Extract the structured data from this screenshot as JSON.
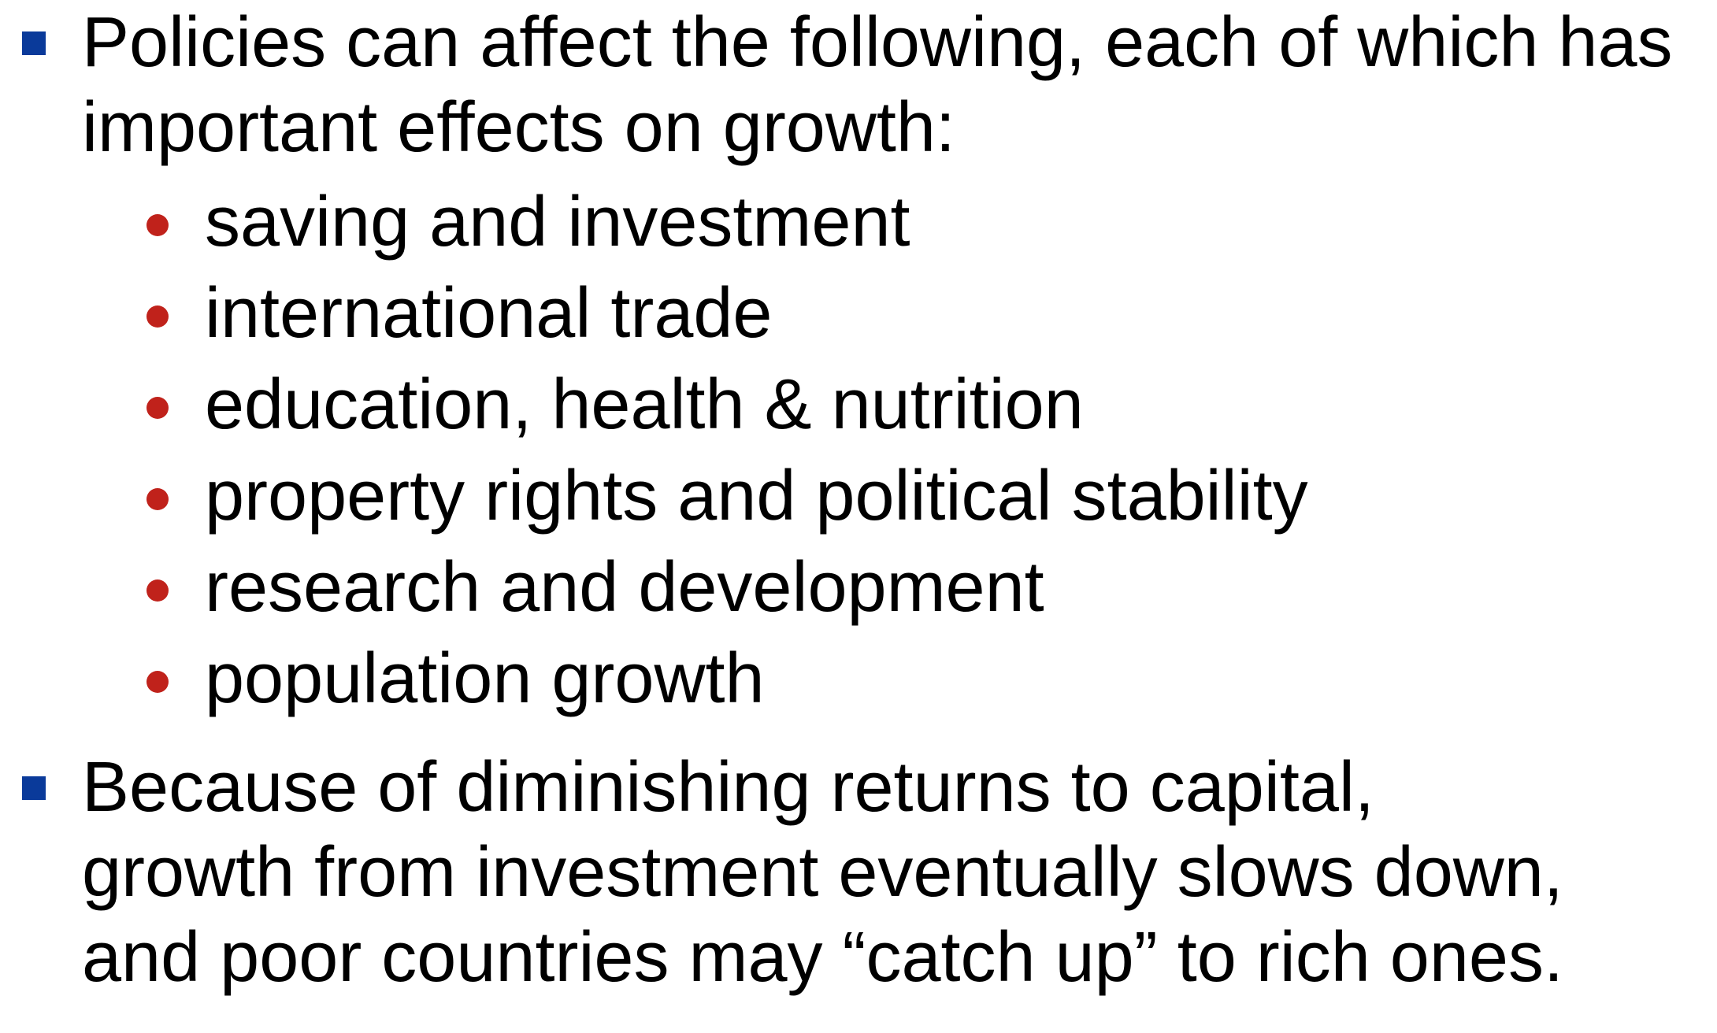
{
  "colors": {
    "primary_bullet": "#0a3a9a",
    "secondary_bullet": "#c0221b",
    "text": "#000000"
  },
  "bullets": [
    {
      "lines": [
        "Policies can affect the following, each of which has",
        "important effects on growth:"
      ],
      "sub_items": [
        "saving and investment",
        "international trade",
        "education, health & nutrition",
        "property rights and political stability",
        "research and development",
        "population growth"
      ]
    },
    {
      "lines": [
        "Because of diminishing returns to capital,",
        "growth from investment eventually slows down,",
        "and poor countries may “catch up” to rich ones."
      ]
    }
  ]
}
